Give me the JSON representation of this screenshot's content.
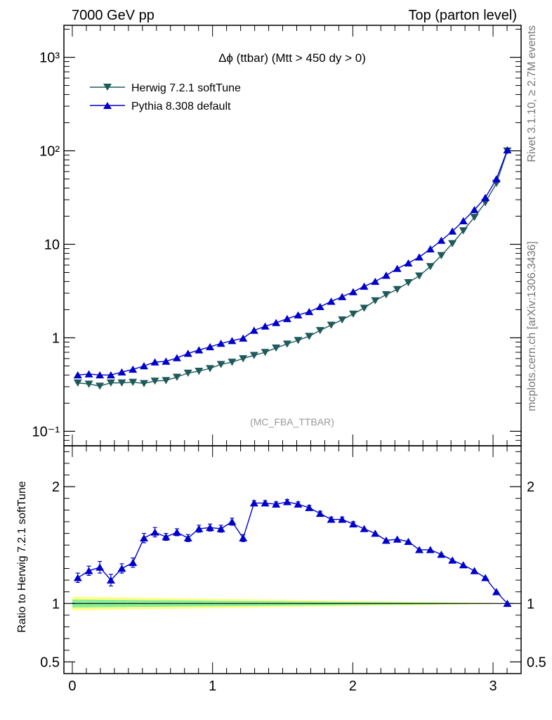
{
  "header": {
    "left": "7000 GeV pp",
    "right": "Top (parton level)"
  },
  "side_labels": {
    "top": "Rivet 3.1.10, ≥ 2.7M events",
    "bottom": "mcplots.cern.ch [arXiv:1306.3436]"
  },
  "chart_data": [
    {
      "type": "line",
      "title": "Δϕ (ttbar) (Mtt > 450 dy > 0)",
      "watermark": "(MC_FBA_TTBAR)",
      "xlim": [
        -0.06,
        3.2
      ],
      "ylim": [
        0.07,
        2200
      ],
      "yscale": "log",
      "ytick_labels": [
        "10⁻¹",
        "1",
        "10",
        "10²",
        "10³"
      ],
      "legend_position": "top-left",
      "x": [
        0.039,
        0.118,
        0.196,
        0.275,
        0.353,
        0.432,
        0.511,
        0.589,
        0.668,
        0.746,
        0.825,
        0.903,
        0.982,
        1.06,
        1.139,
        1.218,
        1.296,
        1.375,
        1.453,
        1.532,
        1.61,
        1.689,
        1.767,
        1.846,
        1.924,
        2.003,
        2.081,
        2.16,
        2.238,
        2.317,
        2.396,
        2.474,
        2.553,
        2.631,
        2.71,
        2.788,
        2.867,
        2.945,
        3.024,
        3.102
      ],
      "series": [
        {
          "name": "Herwig 7.2.1 softTune",
          "color": "#1e5a5a",
          "marker": "triangle-down",
          "values": [
            0.33,
            0.32,
            0.305,
            0.33,
            0.33,
            0.335,
            0.325,
            0.345,
            0.35,
            0.38,
            0.42,
            0.44,
            0.47,
            0.52,
            0.55,
            0.6,
            0.65,
            0.7,
            0.78,
            0.86,
            0.94,
            1.04,
            1.2,
            1.37,
            1.56,
            1.8,
            2.08,
            2.5,
            2.9,
            3.3,
            3.9,
            4.6,
            5.8,
            7.6,
            10.2,
            14.0,
            19.5,
            28,
            45,
            100
          ]
        },
        {
          "name": "Pythia 8.308 default",
          "color": "#0000cc",
          "marker": "triangle-up",
          "values": [
            0.4,
            0.41,
            0.4,
            0.4,
            0.43,
            0.46,
            0.5,
            0.55,
            0.56,
            0.61,
            0.68,
            0.74,
            0.8,
            0.87,
            0.93,
            0.99,
            1.2,
            1.33,
            1.45,
            1.6,
            1.75,
            1.9,
            2.15,
            2.45,
            2.75,
            3.1,
            3.55,
            4.0,
            4.65,
            5.5,
            6.3,
            7.3,
            8.9,
            11.0,
            13.8,
            17.8,
            23.4,
            31.5,
            50,
            102
          ]
        }
      ]
    },
    {
      "type": "line",
      "ylabel": "Ratio to Herwig 7.2.1 softTune",
      "xlim": [
        -0.06,
        3.2
      ],
      "ylim": [
        0.4,
        2.35
      ],
      "ytick_labels": [
        "0.5",
        "1",
        "2"
      ],
      "xtick_labels": [
        "0",
        "1",
        "2",
        "3"
      ],
      "band_colors": {
        "outer": "#ffff88",
        "inner": "#88ee99"
      },
      "reference_value": 1.0,
      "x": [
        0.039,
        0.118,
        0.196,
        0.275,
        0.353,
        0.432,
        0.511,
        0.589,
        0.668,
        0.746,
        0.825,
        0.903,
        0.982,
        1.06,
        1.139,
        1.218,
        1.296,
        1.375,
        1.453,
        1.532,
        1.61,
        1.689,
        1.767,
        1.846,
        1.924,
        2.003,
        2.081,
        2.16,
        2.238,
        2.317,
        2.396,
        2.474,
        2.553,
        2.631,
        2.71,
        2.788,
        2.867,
        2.945,
        3.024,
        3.102
      ],
      "series": [
        {
          "name": "Pythia 8.308 default",
          "color": "#0000cc",
          "values": [
            1.22,
            1.28,
            1.31,
            1.2,
            1.3,
            1.35,
            1.56,
            1.61,
            1.57,
            1.61,
            1.56,
            1.64,
            1.65,
            1.64,
            1.7,
            1.56,
            1.86,
            1.86,
            1.85,
            1.87,
            1.85,
            1.82,
            1.77,
            1.72,
            1.72,
            1.68,
            1.64,
            1.6,
            1.54,
            1.55,
            1.53,
            1.46,
            1.46,
            1.42,
            1.37,
            1.33,
            1.28,
            1.22,
            1.1,
            1.0
          ],
          "errors": [
            0.04,
            0.04,
            0.05,
            0.05,
            0.04,
            0.04,
            0.04,
            0.04,
            0.03,
            0.03,
            0.03,
            0.03,
            0.03,
            0.03,
            0.03,
            0.03,
            0.02,
            0.02,
            0.02,
            0.02,
            0.02,
            0.02,
            0.02,
            0.02,
            0.02,
            0.02,
            0.01,
            0.01,
            0.01,
            0.01,
            0.01,
            0.01,
            0.01,
            0.01,
            0.01,
            0.01,
            0.01,
            0.01,
            0.01,
            0.01
          ]
        }
      ]
    }
  ]
}
